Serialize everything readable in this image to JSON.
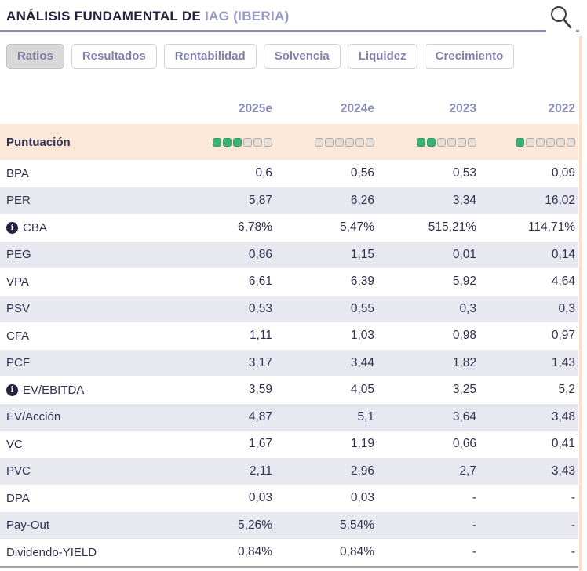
{
  "header": {
    "title_prefix": "ANÁLISIS FUNDAMENTAL DE ",
    "title_ticker": "IAG (IBERIA)",
    "search_icon": "magnifier-icon"
  },
  "tabs": [
    {
      "label": "Ratios",
      "active": true
    },
    {
      "label": "Resultados",
      "active": false
    },
    {
      "label": "Rentabilidad",
      "active": false
    },
    {
      "label": "Solvencia",
      "active": false
    },
    {
      "label": "Liquidez",
      "active": false
    },
    {
      "label": "Crecimiento",
      "active": false
    }
  ],
  "table": {
    "columns": [
      "2025e",
      "2024e",
      "2023",
      "2022"
    ],
    "score_row": {
      "label": "Puntuación",
      "total_squares": 6,
      "filled": [
        3,
        0,
        2,
        1
      ]
    },
    "rows": [
      {
        "label": "BPA",
        "info": false,
        "values": [
          "0,6",
          "0,56",
          "0,53",
          "0,09"
        ]
      },
      {
        "label": "PER",
        "info": false,
        "values": [
          "5,87",
          "6,26",
          "3,34",
          "16,02"
        ]
      },
      {
        "label": "CBA",
        "info": true,
        "values": [
          "6,78%",
          "5,47%",
          "515,21%",
          "114,71%"
        ]
      },
      {
        "label": "PEG",
        "info": false,
        "values": [
          "0,86",
          "1,15",
          "0,01",
          "0,14"
        ]
      },
      {
        "label": "VPA",
        "info": false,
        "values": [
          "6,61",
          "6,39",
          "5,92",
          "4,64"
        ]
      },
      {
        "label": "PSV",
        "info": false,
        "values": [
          "0,53",
          "0,55",
          "0,3",
          "0,3"
        ]
      },
      {
        "label": "CFA",
        "info": false,
        "values": [
          "1,11",
          "1,03",
          "0,98",
          "0,97"
        ]
      },
      {
        "label": "PCF",
        "info": false,
        "values": [
          "3,17",
          "3,44",
          "1,82",
          "1,43"
        ]
      },
      {
        "label": "EV/EBITDA",
        "info": true,
        "values": [
          "3,59",
          "4,05",
          "3,25",
          "5,2"
        ]
      },
      {
        "label": "EV/Acción",
        "info": false,
        "values": [
          "4,87",
          "5,1",
          "3,64",
          "3,48"
        ]
      },
      {
        "label": "VC",
        "info": false,
        "values": [
          "1,67",
          "1,19",
          "0,66",
          "0,41"
        ]
      },
      {
        "label": "PVC",
        "info": false,
        "values": [
          "2,11",
          "2,96",
          "2,7",
          "3,43"
        ]
      },
      {
        "label": "DPA",
        "info": false,
        "values": [
          "0,03",
          "0,03",
          "-",
          "-"
        ]
      },
      {
        "label": "Pay-Out",
        "info": false,
        "values": [
          "5,26%",
          "5,54%",
          "-",
          "-"
        ]
      },
      {
        "label": "Dividendo-YIELD",
        "info": false,
        "values": [
          "0,84%",
          "0,84%",
          "-",
          "-"
        ]
      }
    ]
  },
  "colors": {
    "title_navy": "#23233f",
    "ticker_purple": "#9a9ac6",
    "header_underline": "#8b8bab",
    "year_header": "#8d8dbc",
    "row_alt": "#e8e8f0",
    "score_row_bg": "#fbe8d8",
    "score_filled_green": "#3bb273",
    "score_empty": "#e7ded7"
  }
}
